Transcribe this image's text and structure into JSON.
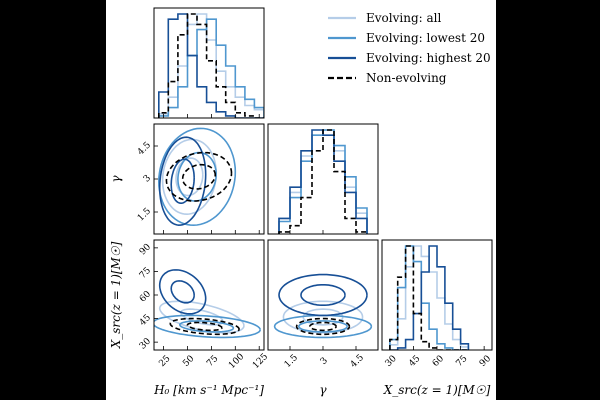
{
  "chart_data": {
    "type": "corner",
    "parameters": [
      {
        "id": "H0",
        "label": "H₀ [km s⁻¹ Mpc⁻¹]",
        "range": [
          15,
          130
        ],
        "ticks": [
          25,
          50,
          75,
          100,
          125
        ]
      },
      {
        "id": "gamma",
        "label": "γ",
        "range": [
          0.5,
          5.5
        ],
        "ticks": [
          1.5,
          3.0,
          4.5
        ]
      },
      {
        "id": "Xsrc",
        "label": "X_src(z = 1)[M☉]",
        "range": [
          25,
          95
        ],
        "ticks": [
          30,
          45,
          60,
          75,
          90
        ]
      }
    ],
    "legend": {
      "position": "upper-right",
      "entries": [
        "Evolving: all",
        "Evolving: lowest 20",
        "Evolving: highest 20",
        "Non-evolving"
      ]
    },
    "series": [
      {
        "name": "Evolving: all",
        "color": "#b5cde8",
        "dash": "solid",
        "hist": {
          "H0": {
            "bins": [
              20,
              30,
              40,
              50,
              60,
              70,
              80,
              90,
              100,
              110,
              120,
              130
            ],
            "density": [
              0.04,
              0.2,
              0.5,
              0.9,
              1.0,
              0.75,
              0.45,
              0.3,
              0.2,
              0.12,
              0.08
            ]
          },
          "gamma": {
            "bins": [
              1.0,
              1.5,
              2.0,
              2.5,
              3.0,
              3.5,
              4.0,
              4.5,
              5.0
            ],
            "density": [
              0.15,
              0.4,
              0.75,
              0.95,
              1.0,
              0.8,
              0.45,
              0.2
            ]
          },
          "Xsrc": {
            "bins": [
              30,
              35,
              40,
              45,
              50,
              55,
              60,
              65,
              70,
              75,
              80
            ],
            "density": [
              0.05,
              0.3,
              0.8,
              1.0,
              0.9,
              0.75,
              0.5,
              0.25,
              0.1,
              0.03
            ]
          }
        },
        "contours": {
          "H0-gamma": {
            "center": [
              52,
              3.1
            ],
            "sigma": [
              14,
              0.85
            ],
            "rho": 0.1
          },
          "H0-Xsrc": {
            "center": [
              65,
              46
            ],
            "sigma": [
              22,
              5
            ],
            "rho": -0.55
          },
          "gamma-Xsrc": {
            "center": [
              3.0,
              46
            ],
            "sigma": [
              0.9,
              5
            ],
            "rho": 0.0
          }
        }
      },
      {
        "name": "Evolving: lowest 20",
        "color": "#4f97cf",
        "dash": "solid",
        "hist": {
          "H0": {
            "bins": [
              20,
              30,
              40,
              50,
              60,
              70,
              80,
              90,
              100,
              110,
              120,
              130
            ],
            "density": [
              0.02,
              0.1,
              0.3,
              0.6,
              0.85,
              0.95,
              0.7,
              0.5,
              0.3,
              0.18,
              0.1
            ]
          },
          "gamma": {
            "bins": [
              1.0,
              1.5,
              2.0,
              2.5,
              3.0,
              3.5,
              4.0,
              4.5,
              5.0
            ],
            "density": [
              0.12,
              0.35,
              0.7,
              0.95,
              1.0,
              0.85,
              0.55,
              0.25
            ]
          },
          "Xsrc": {
            "bins": [
              30,
              35,
              40,
              45,
              50,
              55,
              60,
              65,
              70,
              75,
              80
            ],
            "density": [
              0.1,
              0.6,
              1.0,
              0.85,
              0.45,
              0.2,
              0.06,
              0.02,
              0.0,
              0.0
            ]
          }
        },
        "contours": {
          "H0-gamma": {
            "center": [
              60,
              3.1
            ],
            "sigma": [
              20,
              1.1
            ],
            "rho": 0.1
          },
          "H0-Xsrc": {
            "center": [
              70,
              40
            ],
            "sigma": [
              28,
              3.5
            ],
            "rho": -0.3
          },
          "gamma-Xsrc": {
            "center": [
              3.0,
              40
            ],
            "sigma": [
              1.1,
              3.5
            ],
            "rho": 0.0
          }
        }
      },
      {
        "name": "Evolving: highest 20",
        "color": "#174f96",
        "dash": "solid",
        "hist": {
          "H0": {
            "bins": [
              20,
              30,
              40,
              50,
              60,
              70,
              80,
              90,
              100,
              110,
              120,
              130
            ],
            "density": [
              0.25,
              0.95,
              1.0,
              0.6,
              0.3,
              0.15,
              0.06,
              0.02,
              0.0,
              0.0,
              0.0
            ]
          },
          "gamma": {
            "bins": [
              1.0,
              1.5,
              2.0,
              2.5,
              3.0,
              3.5,
              4.0,
              4.5,
              5.0
            ],
            "density": [
              0.15,
              0.45,
              0.8,
              1.0,
              0.95,
              0.7,
              0.4,
              0.15
            ]
          },
          "Xsrc": {
            "bins": [
              30,
              35,
              40,
              45,
              50,
              55,
              60,
              65,
              70,
              75,
              80
            ],
            "density": [
              0.0,
              0.02,
              0.1,
              0.35,
              0.75,
              1.0,
              0.8,
              0.45,
              0.2,
              0.06
            ]
          }
        },
        "contours": {
          "H0-gamma": {
            "center": [
              45,
              2.9
            ],
            "sigma": [
              12,
              1.0
            ],
            "rho": 0.15
          },
          "H0-Xsrc": {
            "center": [
              45,
              62
            ],
            "sigma": [
              12,
              7
            ],
            "rho": -0.3
          },
          "gamma-Xsrc": {
            "center": [
              3.0,
              60
            ],
            "sigma": [
              1.0,
              6.5
            ],
            "rho": 0.0
          }
        }
      },
      {
        "name": "Non-evolving",
        "color": "#000000",
        "dash": "dashed",
        "hist": {
          "H0": {
            "bins": [
              20,
              30,
              40,
              50,
              60,
              70,
              80,
              90,
              100,
              110,
              120,
              130
            ],
            "density": [
              0.05,
              0.35,
              0.8,
              1.0,
              0.9,
              0.55,
              0.3,
              0.15,
              0.05,
              0.02,
              0.0
            ]
          },
          "gamma": {
            "bins": [
              1.0,
              1.5,
              2.0,
              2.5,
              3.0,
              3.5,
              4.0,
              4.5,
              5.0
            ],
            "density": [
              0.02,
              0.08,
              0.35,
              0.8,
              1.0,
              0.6,
              0.15,
              0.02
            ]
          },
          "Xsrc": {
            "bins": [
              30,
              35,
              40,
              45,
              50,
              55,
              60,
              65,
              70,
              75,
              80
            ],
            "density": [
              0.1,
              0.7,
              1.0,
              0.35,
              0.08,
              0.02,
              0.0,
              0.0,
              0.0,
              0.0
            ]
          }
        },
        "contours": {
          "H0-gamma": {
            "center": [
              62,
              3.1
            ],
            "sigma": [
              17,
              0.55
            ],
            "rho": 0.15
          },
          "H0-Xsrc": {
            "center": [
              68,
              40
            ],
            "sigma": [
              18,
              2.5
            ],
            "rho": -0.35
          },
          "gamma-Xsrc": {
            "center": [
              3.0,
              40
            ],
            "sigma": [
              0.6,
              2.5
            ],
            "rho": 0.0
          }
        }
      }
    ]
  }
}
